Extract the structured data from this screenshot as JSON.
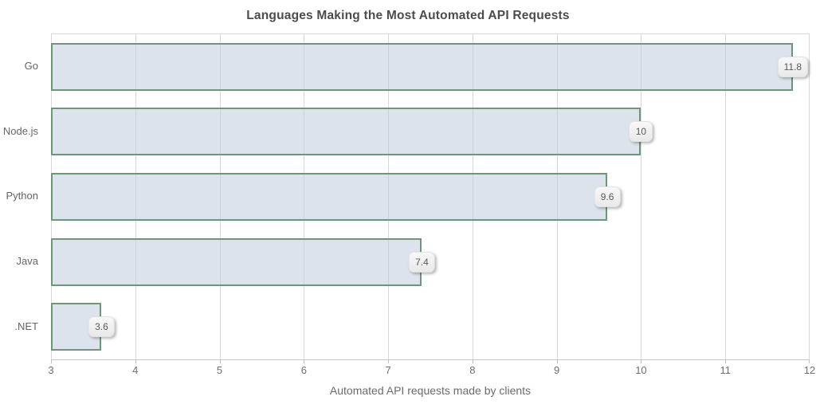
{
  "chart_data": {
    "type": "bar",
    "orientation": "horizontal",
    "title": "Languages Making the Most Automated API Requests",
    "categories": [
      "Go",
      "Node.js",
      "Python",
      "Java",
      ".NET"
    ],
    "values": [
      11.8,
      10,
      9.6,
      7.4,
      3.6
    ],
    "value_labels": [
      "11.8",
      "10",
      "9.6",
      "7.4",
      "3.6"
    ],
    "xlabel": "Automated API requests made by clients",
    "ylabel": "",
    "xlim": [
      3,
      12
    ],
    "xticks": [
      3,
      4,
      5,
      6,
      7,
      8,
      9,
      10,
      11,
      12
    ],
    "grid": "vertical",
    "legend": "none",
    "colors": {
      "bar_fill": "#dde4ee",
      "bar_border": "#71957a",
      "gridline": "#d9d9d9",
      "axis_line": "#c6c6c6",
      "tick_text": "#6e6e6e",
      "label_text": "#666666",
      "title_text": "#4c4c4c",
      "badge_bg": "#efefef",
      "badge_text": "#5a5a5a"
    }
  }
}
